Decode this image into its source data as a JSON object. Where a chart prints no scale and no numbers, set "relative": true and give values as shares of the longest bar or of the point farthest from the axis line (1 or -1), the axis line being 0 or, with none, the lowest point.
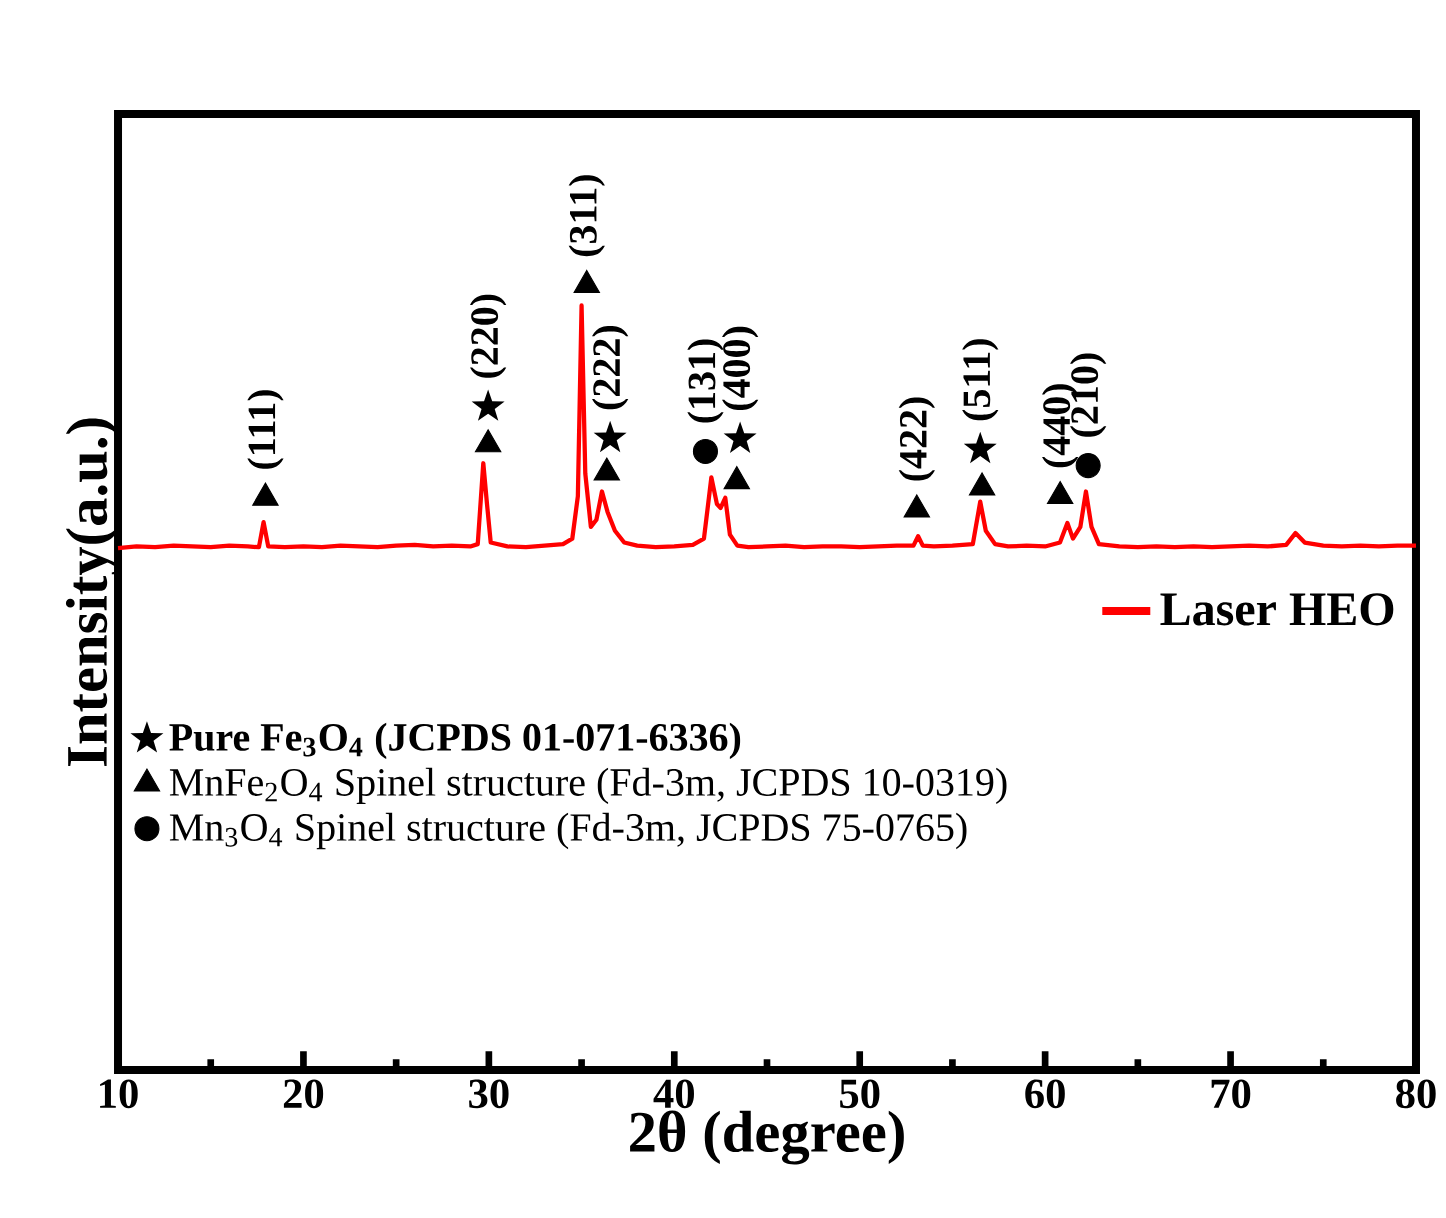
{
  "chart_data": {
    "type": "line",
    "relative": true,
    "xlabel": "2θ (degree)",
    "ylabel": "Intensity(a.u.)",
    "xlim": [
      10,
      80
    ],
    "xticks": [
      10,
      20,
      30,
      40,
      50,
      60,
      70,
      80
    ],
    "legend": "right",
    "series": [
      {
        "name": "Laser HEO",
        "color": "#ff0000",
        "marker": "none",
        "line_style": "solid",
        "x": [
          10,
          11,
          12,
          13,
          14,
          15,
          16,
          17,
          17.6,
          17.85,
          18.1,
          19,
          20,
          21,
          22,
          23,
          24,
          25,
          26,
          27,
          28,
          29,
          29.4,
          29.7,
          29.9,
          30.1,
          31,
          32,
          33,
          34,
          34.5,
          34.8,
          35.0,
          35.2,
          35.5,
          35.8,
          36.1,
          36.4,
          36.8,
          37.3,
          38,
          39,
          40,
          41,
          41.6,
          42.0,
          42.3,
          42.5,
          42.75,
          43.0,
          43.4,
          44,
          45,
          46,
          47,
          48,
          49,
          50,
          51,
          52,
          52.9,
          53.15,
          53.4,
          54,
          55,
          56.1,
          56.5,
          56.8,
          57.3,
          58,
          59,
          60,
          60.8,
          61.2,
          61.5,
          61.9,
          62.2,
          62.5,
          62.9,
          64,
          65,
          66,
          67,
          68,
          69,
          70,
          71,
          72,
          73,
          73.5,
          74,
          75,
          76,
          77,
          78,
          79,
          80
        ],
        "values": [
          0.665,
          0.667,
          0.666,
          0.668,
          0.667,
          0.666,
          0.668,
          0.667,
          0.666,
          0.698,
          0.667,
          0.666,
          0.667,
          0.666,
          0.668,
          0.667,
          0.666,
          0.668,
          0.669,
          0.667,
          0.668,
          0.667,
          0.67,
          0.773,
          0.721,
          0.672,
          0.667,
          0.666,
          0.668,
          0.67,
          0.677,
          0.731,
          0.974,
          0.76,
          0.692,
          0.701,
          0.737,
          0.711,
          0.687,
          0.672,
          0.668,
          0.666,
          0.667,
          0.669,
          0.677,
          0.755,
          0.721,
          0.716,
          0.729,
          0.682,
          0.668,
          0.666,
          0.667,
          0.668,
          0.666,
          0.667,
          0.667,
          0.666,
          0.667,
          0.668,
          0.668,
          0.68,
          0.668,
          0.667,
          0.668,
          0.67,
          0.724,
          0.687,
          0.67,
          0.667,
          0.668,
          0.667,
          0.672,
          0.697,
          0.677,
          0.692,
          0.737,
          0.692,
          0.67,
          0.667,
          0.666,
          0.667,
          0.666,
          0.667,
          0.666,
          0.667,
          0.668,
          0.667,
          0.669,
          0.684,
          0.672,
          0.668,
          0.667,
          0.668,
          0.667,
          0.668,
          0.668
        ]
      },
      {
        "name": "Pure Fe$_{3}$O$_{4}$ (JCPDS 01-071-6336)",
        "type": "scatter",
        "color": "#000000",
        "marker": "star",
        "x": [
          29.96,
          36.54,
          43.55,
          56.5
        ],
        "values": [
          0.845,
          0.805,
          0.804,
          0.791
        ]
      },
      {
        "name": "MnFe$_{2}$O$_{4}$ Spinel structure (Fd-3m, JCPDS 10-0319)",
        "type": "scatter",
        "color": "#000000",
        "marker": "triangle",
        "x": [
          17.95,
          29.96,
          35.28,
          36.36,
          43.37,
          53.08,
          56.6,
          60.81
        ],
        "values": [
          0.729,
          0.797,
          1.0,
          0.761,
          0.75,
          0.714,
          0.742,
          0.731
        ]
      },
      {
        "name": "Mn$_{3}$O$_{4}$ Spinel structure (Fd-3m, JCPDS 75-0765)",
        "type": "scatter",
        "color": "#000000",
        "marker": "circle",
        "x": [
          41.68,
          62.32
        ],
        "values": [
          0.788,
          0.77
        ]
      }
    ],
    "annotations": [
      {
        "text": "(111)",
        "x": 17.95,
        "y": 0.729
      },
      {
        "text": "(220)",
        "x": 29.96,
        "y": 0.845
      },
      {
        "text": "(311)",
        "x": 35.28,
        "y": 1.0
      },
      {
        "text": "(222)",
        "x": 36.54,
        "y": 0.805
      },
      {
        "text": "(131)",
        "x": 41.68,
        "y": 0.788
      },
      {
        "text": "(400)",
        "x": 43.55,
        "y": 0.804
      },
      {
        "text": "(422)",
        "x": 53.08,
        "y": 0.714
      },
      {
        "text": "(511)",
        "x": 56.5,
        "y": 0.791
      },
      {
        "text": "(440)",
        "x": 60.81,
        "y": 0.731
      },
      {
        "text": "(210)",
        "x": 62.32,
        "y": 0.77
      }
    ]
  }
}
